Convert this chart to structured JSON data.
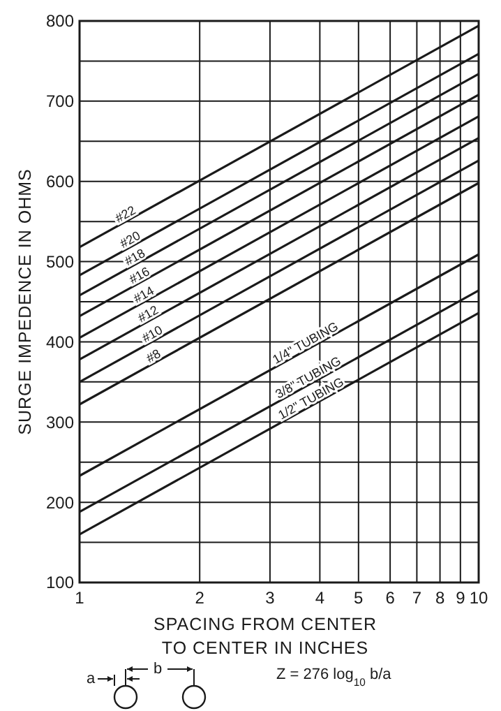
{
  "chart_data": {
    "type": "line",
    "xlabel": "SPACING FROM CENTER TO CENTER IN INCHES",
    "ylabel": "SURGE IMPEDENCE IN OHMS",
    "log": "x",
    "grid": true,
    "marker": "none",
    "line_style": "solid",
    "xlim": [
      1,
      10
    ],
    "xticks": [
      1,
      2,
      3,
      4,
      5,
      6,
      7,
      8,
      9,
      10
    ],
    "ylim": [
      100,
      800
    ],
    "yticks": [
      100,
      {
        "value": 150,
        "label": null
      },
      200,
      {
        "value": 250,
        "label": null
      },
      300,
      {
        "value": 350,
        "label": null
      },
      400,
      {
        "value": 450,
        "label": null
      },
      500,
      {
        "value": 550,
        "label": null
      },
      600,
      {
        "value": 650,
        "label": null
      },
      700,
      {
        "value": 750,
        "label": null
      },
      800
    ],
    "x": [
      1,
      10
    ],
    "series": [
      {
        "name": "#22",
        "color": "#1a1a1a",
        "values": [
          518,
          794
        ]
      },
      {
        "name": "#20",
        "color": "#1a1a1a",
        "values": [
          483,
          759
        ]
      },
      {
        "name": "#18",
        "color": "#1a1a1a",
        "values": [
          458,
          734
        ]
      },
      {
        "name": "#16",
        "color": "#1a1a1a",
        "values": [
          432,
          708
        ]
      },
      {
        "name": "#14",
        "color": "#1a1a1a",
        "values": [
          405,
          681
        ]
      },
      {
        "name": "#12",
        "color": "#1a1a1a",
        "values": [
          378,
          654
        ]
      },
      {
        "name": "#10",
        "color": "#1a1a1a",
        "values": [
          350,
          626
        ]
      },
      {
        "name": "#8",
        "color": "#1a1a1a",
        "values": [
          322,
          598
        ]
      },
      {
        "name": "1/4\" TUBING",
        "color": "#1a1a1a",
        "values": [
          233,
          509
        ]
      },
      {
        "name": "3/8\" TUBING",
        "color": "#1a1a1a",
        "values": [
          188,
          464
        ]
      },
      {
        "name": "1/2\" TUBING",
        "color": "#1a1a1a",
        "values": [
          160,
          436
        ]
      }
    ],
    "annotations": [
      "a",
      "b",
      "Z = 276 log$_{10}$ b/a"
    ]
  }
}
